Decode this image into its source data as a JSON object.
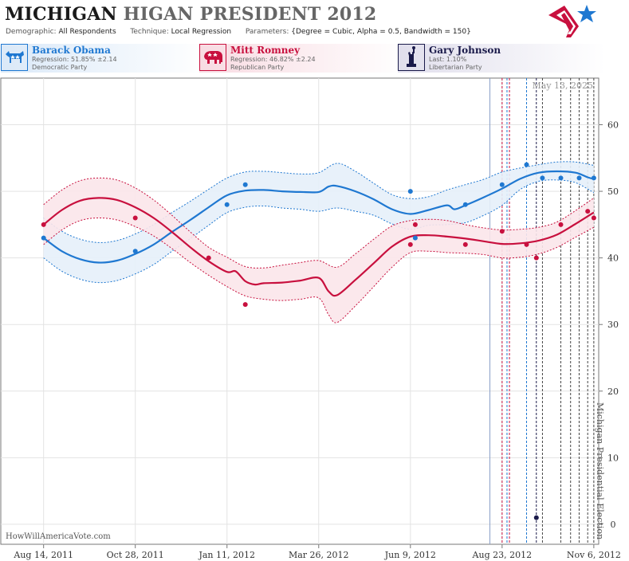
{
  "header": {
    "title_state": "MICHIGAN",
    "title_rest": "HIGAN PRESIDENT 2012",
    "params": [
      {
        "key": "Demographic:",
        "value": "All Respondents"
      },
      {
        "key": "Technique:",
        "value": "Local Regression"
      },
      {
        "key": "Parameters:",
        "value": "{Degree = Cubic, Alpha = 0.5, Bandwidth = 150}"
      }
    ]
  },
  "candidates": [
    {
      "name": "Barack Obama",
      "stat": "Regression: 51.85% ±2.14",
      "party": "Democratic Party",
      "color": "#1f78d1",
      "icon": "donkey-icon"
    },
    {
      "name": "Mitt Romney",
      "stat": "Regression: 46.82% ±2.24",
      "party": "Republican Party",
      "color": "#c8103e",
      "icon": "elephant-icon"
    },
    {
      "name": "Gary Johnson",
      "stat": "Last: 1.10%",
      "party": "Libertarian Party",
      "color": "#1a1a4a",
      "icon": "liberty-icon"
    }
  ],
  "source": "HowWillAmericaVote.com",
  "chart_data": {
    "type": "line",
    "date_label": "May 13, 2025",
    "election_label": "Michigan Presidential Election",
    "x_ticks": [
      "Aug 14, 2011",
      "Oct 28, 2011",
      "Jan 11, 2012",
      "Mar 26, 2012",
      "Jun 9, 2012",
      "Aug 23, 2012",
      "Nov 6, 2012"
    ],
    "x_domain": [
      "2011-07-10",
      "2012-11-10"
    ],
    "y_ticks": [
      0,
      10,
      20,
      30,
      40,
      50,
      60
    ],
    "ylim": [
      -3,
      67
    ],
    "grid": true,
    "series": [
      {
        "name": "Barack Obama",
        "color": "#1f78d1",
        "fill": "#e6f0fa",
        "trend": [
          [
            "2011-08-14",
            43.0
          ],
          [
            "2011-08-29",
            41.0
          ],
          [
            "2011-09-13",
            39.8
          ],
          [
            "2011-09-28",
            39.3
          ],
          [
            "2011-10-13",
            39.6
          ],
          [
            "2011-10-28",
            40.6
          ],
          [
            "2011-11-12",
            42.0
          ],
          [
            "2011-11-27",
            43.9
          ],
          [
            "2011-12-12",
            45.7
          ],
          [
            "2011-12-27",
            47.6
          ],
          [
            "2012-01-11",
            49.4
          ],
          [
            "2012-01-26",
            50.1
          ],
          [
            "2012-02-10",
            50.2
          ],
          [
            "2012-02-25",
            50.0
          ],
          [
            "2012-03-11",
            49.9
          ],
          [
            "2012-03-26",
            49.9
          ],
          [
            "2012-04-03",
            50.7
          ],
          [
            "2012-04-10",
            50.8
          ],
          [
            "2012-04-25",
            50.0
          ],
          [
            "2012-05-10",
            48.8
          ],
          [
            "2012-05-25",
            47.3
          ],
          [
            "2012-06-09",
            46.6
          ],
          [
            "2012-06-24",
            47.2
          ],
          [
            "2012-07-09",
            47.9
          ],
          [
            "2012-07-15",
            47.3
          ],
          [
            "2012-07-24",
            47.9
          ],
          [
            "2012-08-08",
            49.1
          ],
          [
            "2012-08-23",
            50.4
          ],
          [
            "2012-09-07",
            51.9
          ],
          [
            "2012-09-22",
            52.8
          ],
          [
            "2012-10-07",
            53.0
          ],
          [
            "2012-10-22",
            52.8
          ],
          [
            "2012-11-01",
            52.1
          ],
          [
            "2012-11-06",
            51.85
          ]
        ],
        "upper": [
          [
            "2011-08-14",
            46.0
          ],
          [
            "2011-08-29",
            44.0
          ],
          [
            "2011-09-13",
            42.8
          ],
          [
            "2011-09-28",
            42.3
          ],
          [
            "2011-10-13",
            42.6
          ],
          [
            "2011-10-28",
            43.6
          ],
          [
            "2011-11-12",
            45.0
          ],
          [
            "2011-11-27",
            46.8
          ],
          [
            "2011-12-12",
            48.5
          ],
          [
            "2011-12-27",
            50.3
          ],
          [
            "2012-01-11",
            52.0
          ],
          [
            "2012-01-26",
            52.9
          ],
          [
            "2012-02-10",
            53.0
          ],
          [
            "2012-02-25",
            52.8
          ],
          [
            "2012-03-11",
            52.6
          ],
          [
            "2012-03-26",
            52.8
          ],
          [
            "2012-04-10",
            54.2
          ],
          [
            "2012-04-25",
            53.0
          ],
          [
            "2012-05-10",
            51.2
          ],
          [
            "2012-05-25",
            49.5
          ],
          [
            "2012-06-09",
            48.9
          ],
          [
            "2012-06-24",
            49.2
          ],
          [
            "2012-07-09",
            50.2
          ],
          [
            "2012-07-24",
            51.0
          ],
          [
            "2012-08-08",
            51.8
          ],
          [
            "2012-08-23",
            52.9
          ],
          [
            "2012-09-07",
            53.5
          ],
          [
            "2012-09-22",
            54.0
          ],
          [
            "2012-10-07",
            54.4
          ],
          [
            "2012-10-22",
            54.4
          ],
          [
            "2012-11-06",
            53.9
          ]
        ],
        "lower": [
          [
            "2011-08-14",
            40.0
          ],
          [
            "2011-08-29",
            38.0
          ],
          [
            "2011-09-13",
            36.8
          ],
          [
            "2011-09-28",
            36.3
          ],
          [
            "2011-10-13",
            36.6
          ],
          [
            "2011-10-28",
            37.6
          ],
          [
            "2011-11-12",
            39.0
          ],
          [
            "2011-11-27",
            41.0
          ],
          [
            "2011-12-12",
            42.9
          ],
          [
            "2011-12-27",
            44.9
          ],
          [
            "2012-01-11",
            46.8
          ],
          [
            "2012-01-26",
            47.6
          ],
          [
            "2012-02-10",
            47.8
          ],
          [
            "2012-02-25",
            47.5
          ],
          [
            "2012-03-11",
            47.3
          ],
          [
            "2012-03-26",
            47.0
          ],
          [
            "2012-04-10",
            47.5
          ],
          [
            "2012-04-25",
            47.0
          ],
          [
            "2012-05-10",
            46.4
          ],
          [
            "2012-05-25",
            45.1
          ],
          [
            "2012-06-09",
            44.3
          ],
          [
            "2012-06-24",
            44.9
          ],
          [
            "2012-07-09",
            45.0
          ],
          [
            "2012-07-24",
            45.3
          ],
          [
            "2012-08-08",
            46.4
          ],
          [
            "2012-08-23",
            47.9
          ],
          [
            "2012-09-07",
            50.3
          ],
          [
            "2012-09-22",
            51.5
          ],
          [
            "2012-10-07",
            51.7
          ],
          [
            "2012-10-22",
            51.3
          ],
          [
            "2012-11-06",
            49.8
          ]
        ],
        "points": [
          [
            "2011-08-14",
            43
          ],
          [
            "2011-10-28",
            41
          ],
          [
            "2012-01-11",
            48
          ],
          [
            "2012-01-26",
            51
          ],
          [
            "2012-06-09",
            50
          ],
          [
            "2012-06-13",
            43
          ],
          [
            "2012-07-24",
            48
          ],
          [
            "2012-08-23",
            51
          ],
          [
            "2012-09-12",
            54
          ],
          [
            "2012-09-25",
            52
          ],
          [
            "2012-10-10",
            52
          ],
          [
            "2012-10-25",
            52
          ],
          [
            "2012-11-06",
            52
          ]
        ]
      },
      {
        "name": "Mitt Romney",
        "color": "#c8103e",
        "fill": "#fbe6ea",
        "trend": [
          [
            "2011-08-14",
            45.0
          ],
          [
            "2011-08-29",
            47.2
          ],
          [
            "2011-09-13",
            48.6
          ],
          [
            "2011-09-28",
            49.0
          ],
          [
            "2011-10-13",
            48.7
          ],
          [
            "2011-10-28",
            47.6
          ],
          [
            "2011-11-12",
            46.0
          ],
          [
            "2011-11-27",
            43.9
          ],
          [
            "2011-12-12",
            41.6
          ],
          [
            "2011-12-27",
            39.5
          ],
          [
            "2012-01-11",
            37.9
          ],
          [
            "2012-01-18",
            38.0
          ],
          [
            "2012-01-26",
            36.5
          ],
          [
            "2012-02-03",
            36.0
          ],
          [
            "2012-02-10",
            36.2
          ],
          [
            "2012-02-25",
            36.3
          ],
          [
            "2012-03-11",
            36.6
          ],
          [
            "2012-03-26",
            37.0
          ],
          [
            "2012-04-03",
            35.0
          ],
          [
            "2012-04-10",
            34.4
          ],
          [
            "2012-04-25",
            36.7
          ],
          [
            "2012-05-10",
            39.2
          ],
          [
            "2012-05-25",
            41.7
          ],
          [
            "2012-06-09",
            43.2
          ],
          [
            "2012-06-24",
            43.4
          ],
          [
            "2012-07-09",
            43.2
          ],
          [
            "2012-07-24",
            42.9
          ],
          [
            "2012-08-08",
            42.5
          ],
          [
            "2012-08-23",
            42.1
          ],
          [
            "2012-09-07",
            42.2
          ],
          [
            "2012-09-22",
            42.6
          ],
          [
            "2012-10-07",
            43.5
          ],
          [
            "2012-10-22",
            45.1
          ],
          [
            "2012-11-06",
            46.82
          ]
        ],
        "upper": [
          [
            "2011-08-14",
            48.0
          ],
          [
            "2011-08-29",
            50.2
          ],
          [
            "2011-09-13",
            51.6
          ],
          [
            "2011-09-28",
            52.0
          ],
          [
            "2011-10-13",
            51.7
          ],
          [
            "2011-10-28",
            50.5
          ],
          [
            "2011-11-12",
            48.7
          ],
          [
            "2011-11-27",
            46.4
          ],
          [
            "2011-12-12",
            43.9
          ],
          [
            "2011-12-27",
            41.6
          ],
          [
            "2012-01-11",
            40.1
          ],
          [
            "2012-01-26",
            38.7
          ],
          [
            "2012-02-10",
            38.5
          ],
          [
            "2012-02-25",
            38.9
          ],
          [
            "2012-03-11",
            39.3
          ],
          [
            "2012-03-26",
            39.6
          ],
          [
            "2012-04-10",
            38.6
          ],
          [
            "2012-04-25",
            40.6
          ],
          [
            "2012-05-10",
            42.8
          ],
          [
            "2012-05-25",
            44.8
          ],
          [
            "2012-06-09",
            45.6
          ],
          [
            "2012-06-24",
            45.8
          ],
          [
            "2012-07-09",
            45.6
          ],
          [
            "2012-07-24",
            45.0
          ],
          [
            "2012-08-08",
            44.5
          ],
          [
            "2012-08-23",
            44.2
          ],
          [
            "2012-09-07",
            44.3
          ],
          [
            "2012-09-22",
            44.6
          ],
          [
            "2012-10-07",
            45.4
          ],
          [
            "2012-10-22",
            47.1
          ],
          [
            "2012-11-06",
            49.0
          ]
        ],
        "lower": [
          [
            "2011-08-14",
            42.0
          ],
          [
            "2011-08-29",
            44.2
          ],
          [
            "2011-09-13",
            45.6
          ],
          [
            "2011-09-28",
            46.0
          ],
          [
            "2011-10-13",
            45.7
          ],
          [
            "2011-10-28",
            44.7
          ],
          [
            "2011-11-12",
            43.3
          ],
          [
            "2011-11-27",
            41.4
          ],
          [
            "2011-12-12",
            39.3
          ],
          [
            "2011-12-27",
            37.4
          ],
          [
            "2012-01-11",
            35.7
          ],
          [
            "2012-01-26",
            34.3
          ],
          [
            "2012-02-10",
            33.8
          ],
          [
            "2012-02-25",
            33.6
          ],
          [
            "2012-03-11",
            33.8
          ],
          [
            "2012-03-26",
            34.0
          ],
          [
            "2012-04-03",
            31.5
          ],
          [
            "2012-04-10",
            30.3
          ],
          [
            "2012-04-25",
            32.8
          ],
          [
            "2012-05-10",
            35.7
          ],
          [
            "2012-05-25",
            38.6
          ],
          [
            "2012-06-09",
            40.8
          ],
          [
            "2012-06-24",
            41.0
          ],
          [
            "2012-07-09",
            40.8
          ],
          [
            "2012-07-24",
            40.7
          ],
          [
            "2012-08-08",
            40.5
          ],
          [
            "2012-08-23",
            40.0
          ],
          [
            "2012-09-07",
            40.1
          ],
          [
            "2012-09-22",
            40.6
          ],
          [
            "2012-10-07",
            41.6
          ],
          [
            "2012-10-22",
            43.1
          ],
          [
            "2012-11-06",
            44.6
          ]
        ],
        "points": [
          [
            "2011-08-14",
            45
          ],
          [
            "2011-10-28",
            46
          ],
          [
            "2011-12-27",
            40
          ],
          [
            "2012-01-26",
            33
          ],
          [
            "2012-06-09",
            42
          ],
          [
            "2012-06-13",
            45
          ],
          [
            "2012-07-24",
            42
          ],
          [
            "2012-08-23",
            44
          ],
          [
            "2012-09-12",
            42
          ],
          [
            "2012-09-20",
            40
          ],
          [
            "2012-10-10",
            45
          ],
          [
            "2012-11-01",
            47
          ],
          [
            "2012-11-06",
            46
          ]
        ]
      },
      {
        "name": "Gary Johnson",
        "color": "#1a1a4a",
        "points": [
          [
            "2012-09-20",
            1
          ]
        ]
      }
    ],
    "poll_dates": [
      {
        "date": "2012-08-13",
        "color": "#8aa0c8",
        "style": "solid"
      },
      {
        "date": "2012-08-23",
        "color": "#c8103e",
        "style": "dashed"
      },
      {
        "date": "2012-08-27",
        "color": "#1f78d1",
        "style": "dashed"
      },
      {
        "date": "2012-08-29",
        "color": "#c8103e",
        "style": "dashed"
      },
      {
        "date": "2012-09-12",
        "color": "#1f78d1",
        "style": "dashed"
      },
      {
        "date": "2012-09-20",
        "color": "#1a1a4a",
        "style": "dashed"
      },
      {
        "date": "2012-09-25",
        "color": "#444444",
        "style": "dashed"
      },
      {
        "date": "2012-10-10",
        "color": "#444444",
        "style": "dashed"
      },
      {
        "date": "2012-10-18",
        "color": "#444444",
        "style": "dashed"
      },
      {
        "date": "2012-10-25",
        "color": "#444444",
        "style": "dashed"
      },
      {
        "date": "2012-11-01",
        "color": "#444444",
        "style": "dashed"
      },
      {
        "date": "2012-11-06",
        "color": "#444444",
        "style": "dashed"
      }
    ]
  }
}
